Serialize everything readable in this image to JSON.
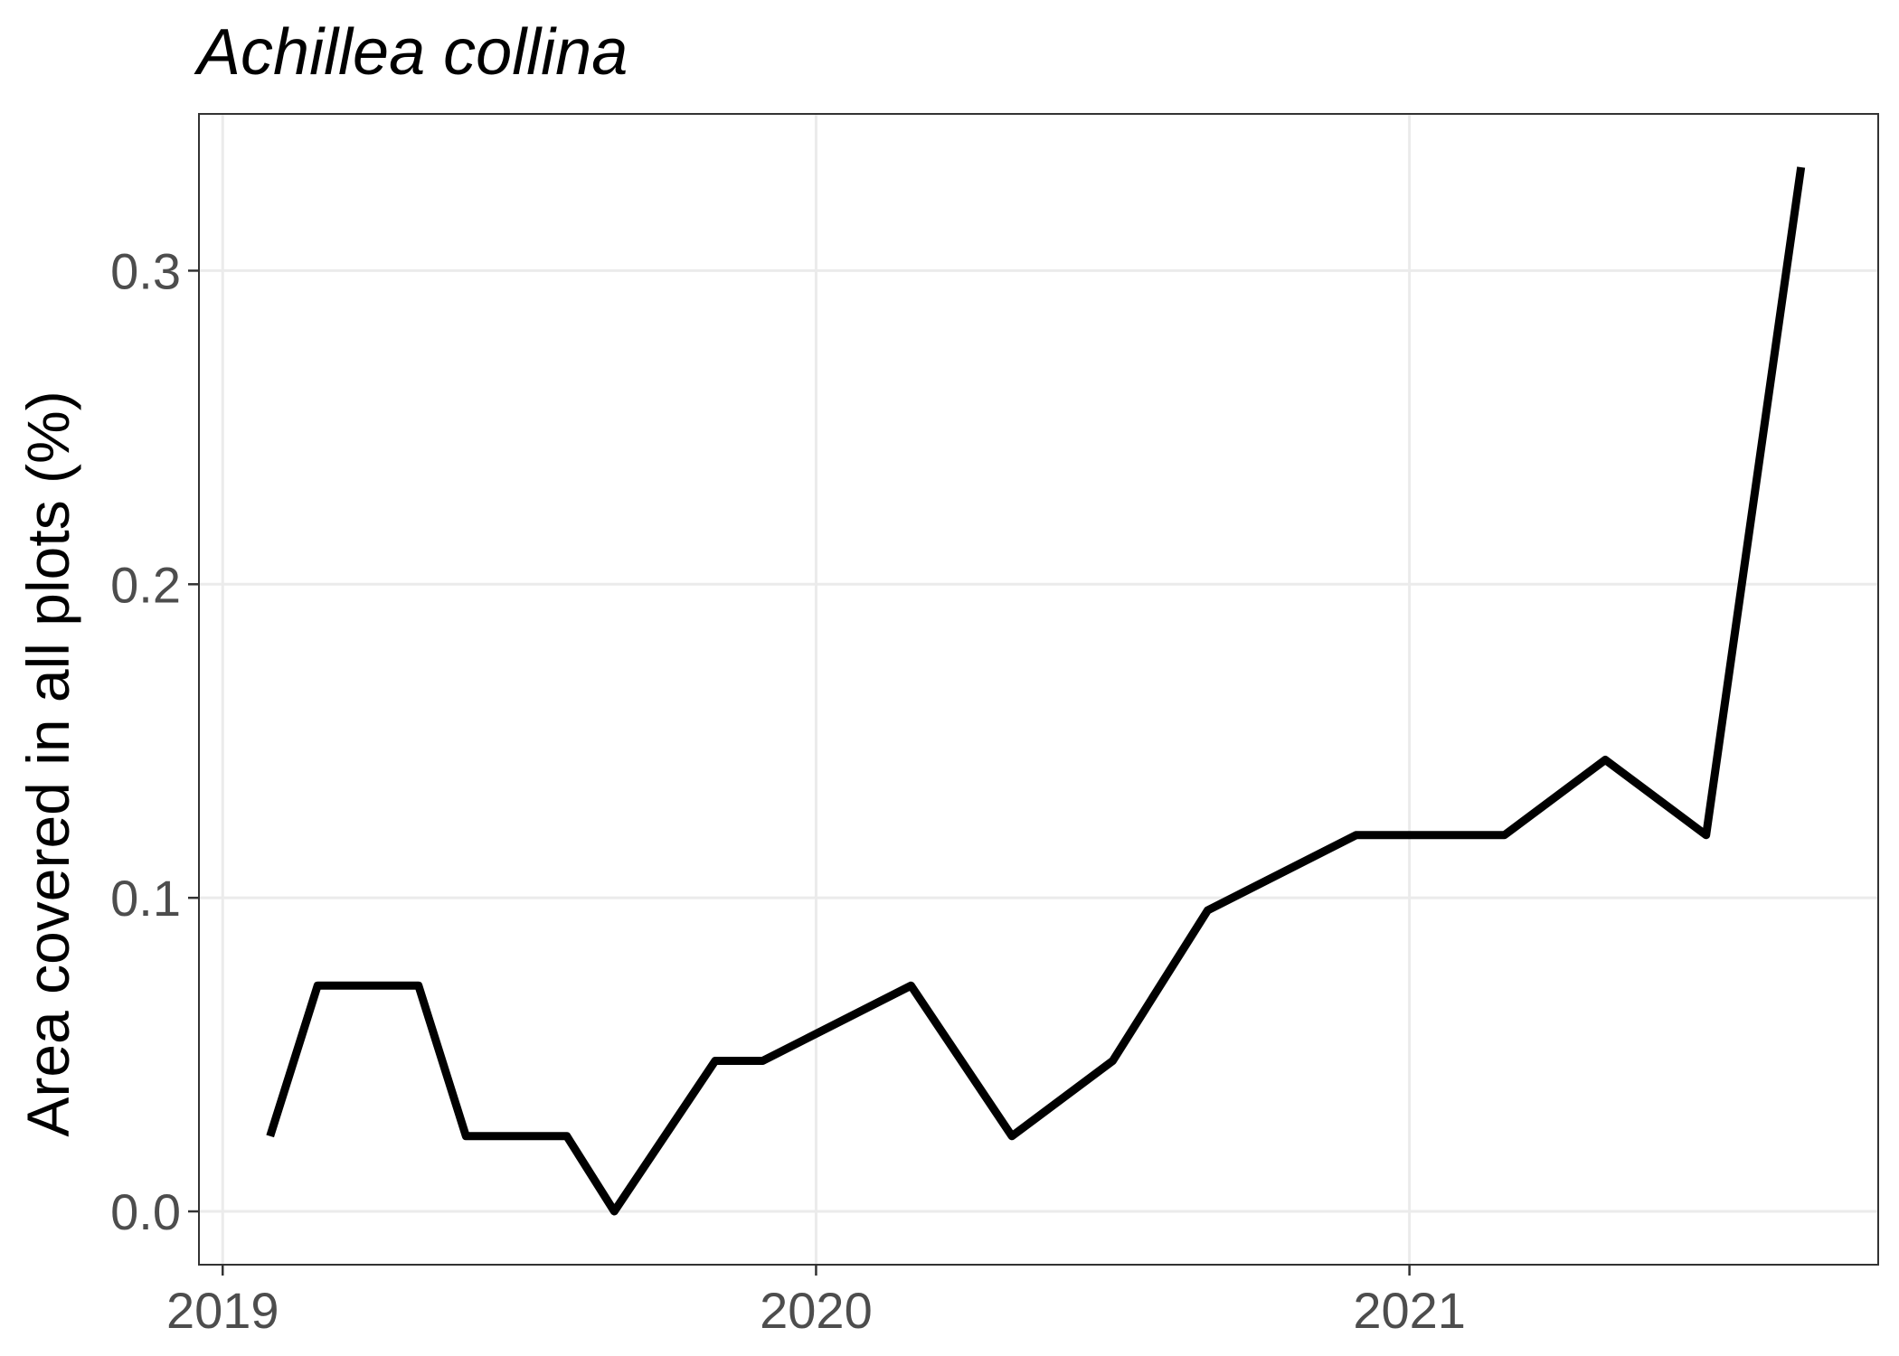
{
  "chart_data": {
    "type": "line",
    "title": "Achillea collina",
    "xlabel": "",
    "ylabel": "Area covered in all plots (%)",
    "x_ticks": [
      "2019",
      "2020",
      "2021"
    ],
    "y_ticks": [
      "0.0",
      "0.1",
      "0.2",
      "0.3"
    ],
    "xlim": [
      2018.96,
      2021.79
    ],
    "ylim": [
      -0.017,
      0.35
    ],
    "grid": true,
    "legend": "none",
    "series": [
      {
        "color": "#000000",
        "x": [
          2019.08,
          2019.16,
          2019.33,
          2019.41,
          2019.58,
          2019.66,
          2019.83,
          2019.91,
          2020.16,
          2020.33,
          2020.5,
          2020.66,
          2020.91,
          2021.16,
          2021.33,
          2021.5,
          2021.66
        ],
        "values": [
          0.024,
          0.072,
          0.072,
          0.024,
          0.024,
          0.0,
          0.048,
          0.048,
          0.072,
          0.024,
          0.048,
          0.096,
          0.12,
          0.12,
          0.144,
          0.12,
          0.333
        ]
      }
    ]
  }
}
